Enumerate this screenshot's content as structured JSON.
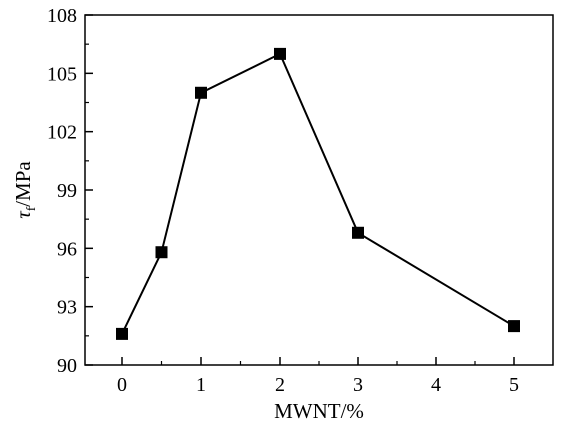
{
  "chart_data": {
    "type": "line",
    "x_categories": [
      "0",
      "1",
      "2",
      "3",
      "4",
      "5"
    ],
    "x_tick_labels": [
      "0",
      "1",
      "2",
      "3",
      "4",
      "5"
    ],
    "y_tick_labels": [
      "90",
      "93",
      "96",
      "99",
      "102",
      "105",
      "108"
    ],
    "ylim": [
      90,
      108
    ],
    "xlabel": "MWNT/%",
    "ylabel": {
      "symbol": "τ",
      "subscript": "f",
      "unit": "/MPa"
    },
    "series": [
      {
        "points": [
          {
            "x": 0,
            "y": 91.6
          },
          {
            "x": 0.5,
            "y": 95.8
          },
          {
            "x": 1,
            "y": 104.0
          },
          {
            "x": 2,
            "y": 106.0
          },
          {
            "x": 3,
            "y": 96.8
          },
          {
            "x": 5,
            "y": 92.0
          }
        ],
        "marker": "square",
        "color": "#000000"
      }
    ],
    "grid": false,
    "legend": "none"
  }
}
